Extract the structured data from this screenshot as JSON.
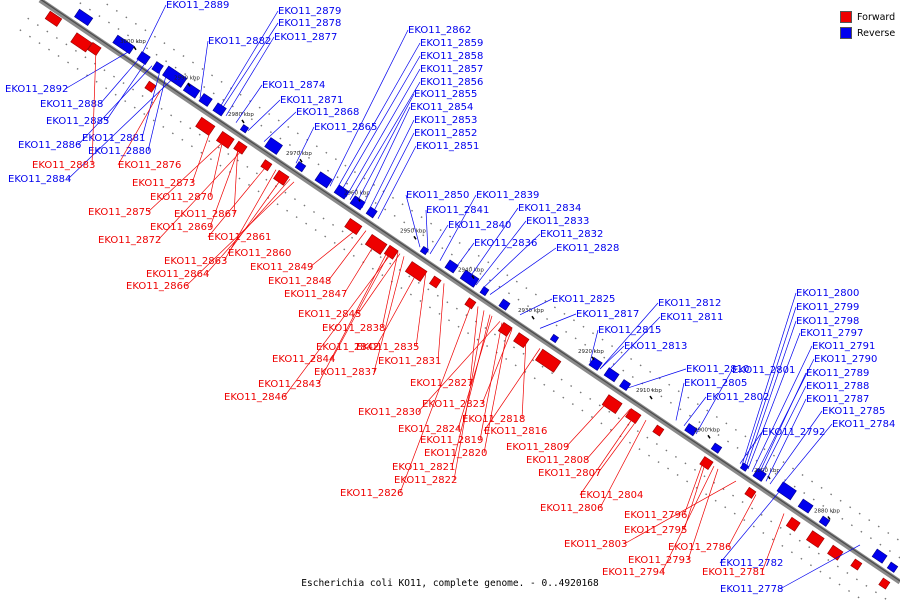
{
  "legend": {
    "items": [
      {
        "label": "Forward",
        "color": "#ee0000"
      },
      {
        "label": "Reverse",
        "color": "#0000ee"
      }
    ]
  },
  "caption": "Escherichia coli KO11, complete genome. - 0..4920168",
  "colors": {
    "forward": "#ee0000",
    "reverse": "#0000ee",
    "axis": "#555555"
  },
  "ruler": [
    "3000 kbp",
    "2990 kbp",
    "2980 kbp",
    "2970 kbp",
    "2960 kbp",
    "2950 kbp",
    "2940 kbp",
    "2930 kbp",
    "2920 kbp",
    "2910 kbp",
    "2900 kbp",
    "2890 kbp",
    "2880 kbp"
  ],
  "genes_reverse": [
    "EKO11_2889",
    "EKO11_2879",
    "EKO11_2878",
    "EKO11_2882",
    "EKO11_2877",
    "EKO11_2892",
    "EKO11_2888",
    "EKO11_2885",
    "EKO11_2886",
    "EKO11_2881",
    "EKO11_2880",
    "EKO11_2884",
    "EKO11_2874",
    "EKO11_2871",
    "EKO11_2868",
    "EKO11_2865",
    "EKO11_2862",
    "EKO11_2859",
    "EKO11_2858",
    "EKO11_2857",
    "EKO11_2856",
    "EKO11_2855",
    "EKO11_2854",
    "EKO11_2853",
    "EKO11_2852",
    "EKO11_2851",
    "EKO11_2850",
    "EKO11_2839",
    "EKO11_2841",
    "EKO11_2834",
    "EKO11_2840",
    "EKO11_2833",
    "EKO11_2836",
    "EKO11_2832",
    "EKO11_2828",
    "EKO11_2825",
    "EKO11_2817",
    "EKO11_2812",
    "EKO11_2811",
    "EKO11_2815",
    "EKO11_2813",
    "EKO11_2810",
    "EKO11_2805",
    "EKO11_2801",
    "EKO11_2802",
    "EKO11_2800",
    "EKO11_2799",
    "EKO11_2798",
    "EKO11_2797",
    "EKO11_2791",
    "EKO11_2790",
    "EKO11_2789",
    "EKO11_2788",
    "EKO11_2787",
    "EKO11_2785",
    "EKO11_2784",
    "EKO11_2792",
    "EKO11_2782",
    "EKO11_2778"
  ],
  "genes_forward": [
    "EKO11_2883",
    "EKO11_2876",
    "EKO11_2873",
    "EKO11_2870",
    "EKO11_2875",
    "EKO11_2867",
    "EKO11_2869",
    "EKO11_2872",
    "EKO11_2861",
    "EKO11_2860",
    "EKO11_2863",
    "EKO11_2849",
    "EKO11_2864",
    "EKO11_2848",
    "EKO11_2866",
    "EKO11_2847",
    "EKO11_2845",
    "EKO11_2838",
    "EKO11_2842",
    "EKO11_2835",
    "EKO11_2844",
    "EKO11_2831",
    "EKO11_2837",
    "EKO11_2843",
    "EKO11_2827",
    "EKO11_2846",
    "EKO11_2823",
    "EKO11_2830",
    "EKO11_2818",
    "EKO11_2824",
    "EKO11_2816",
    "EKO11_2819",
    "EKO11_2820",
    "EKO11_2809",
    "EKO11_2821",
    "EKO11_2808",
    "EKO11_2822",
    "EKO11_2807",
    "EKO11_2826",
    "EKO11_2804",
    "EKO11_2806",
    "EKO11_2796",
    "EKO11_2795",
    "EKO11_2803",
    "EKO11_2786",
    "EKO11_2793",
    "EKO11_2794",
    "EKO11_2781"
  ]
}
